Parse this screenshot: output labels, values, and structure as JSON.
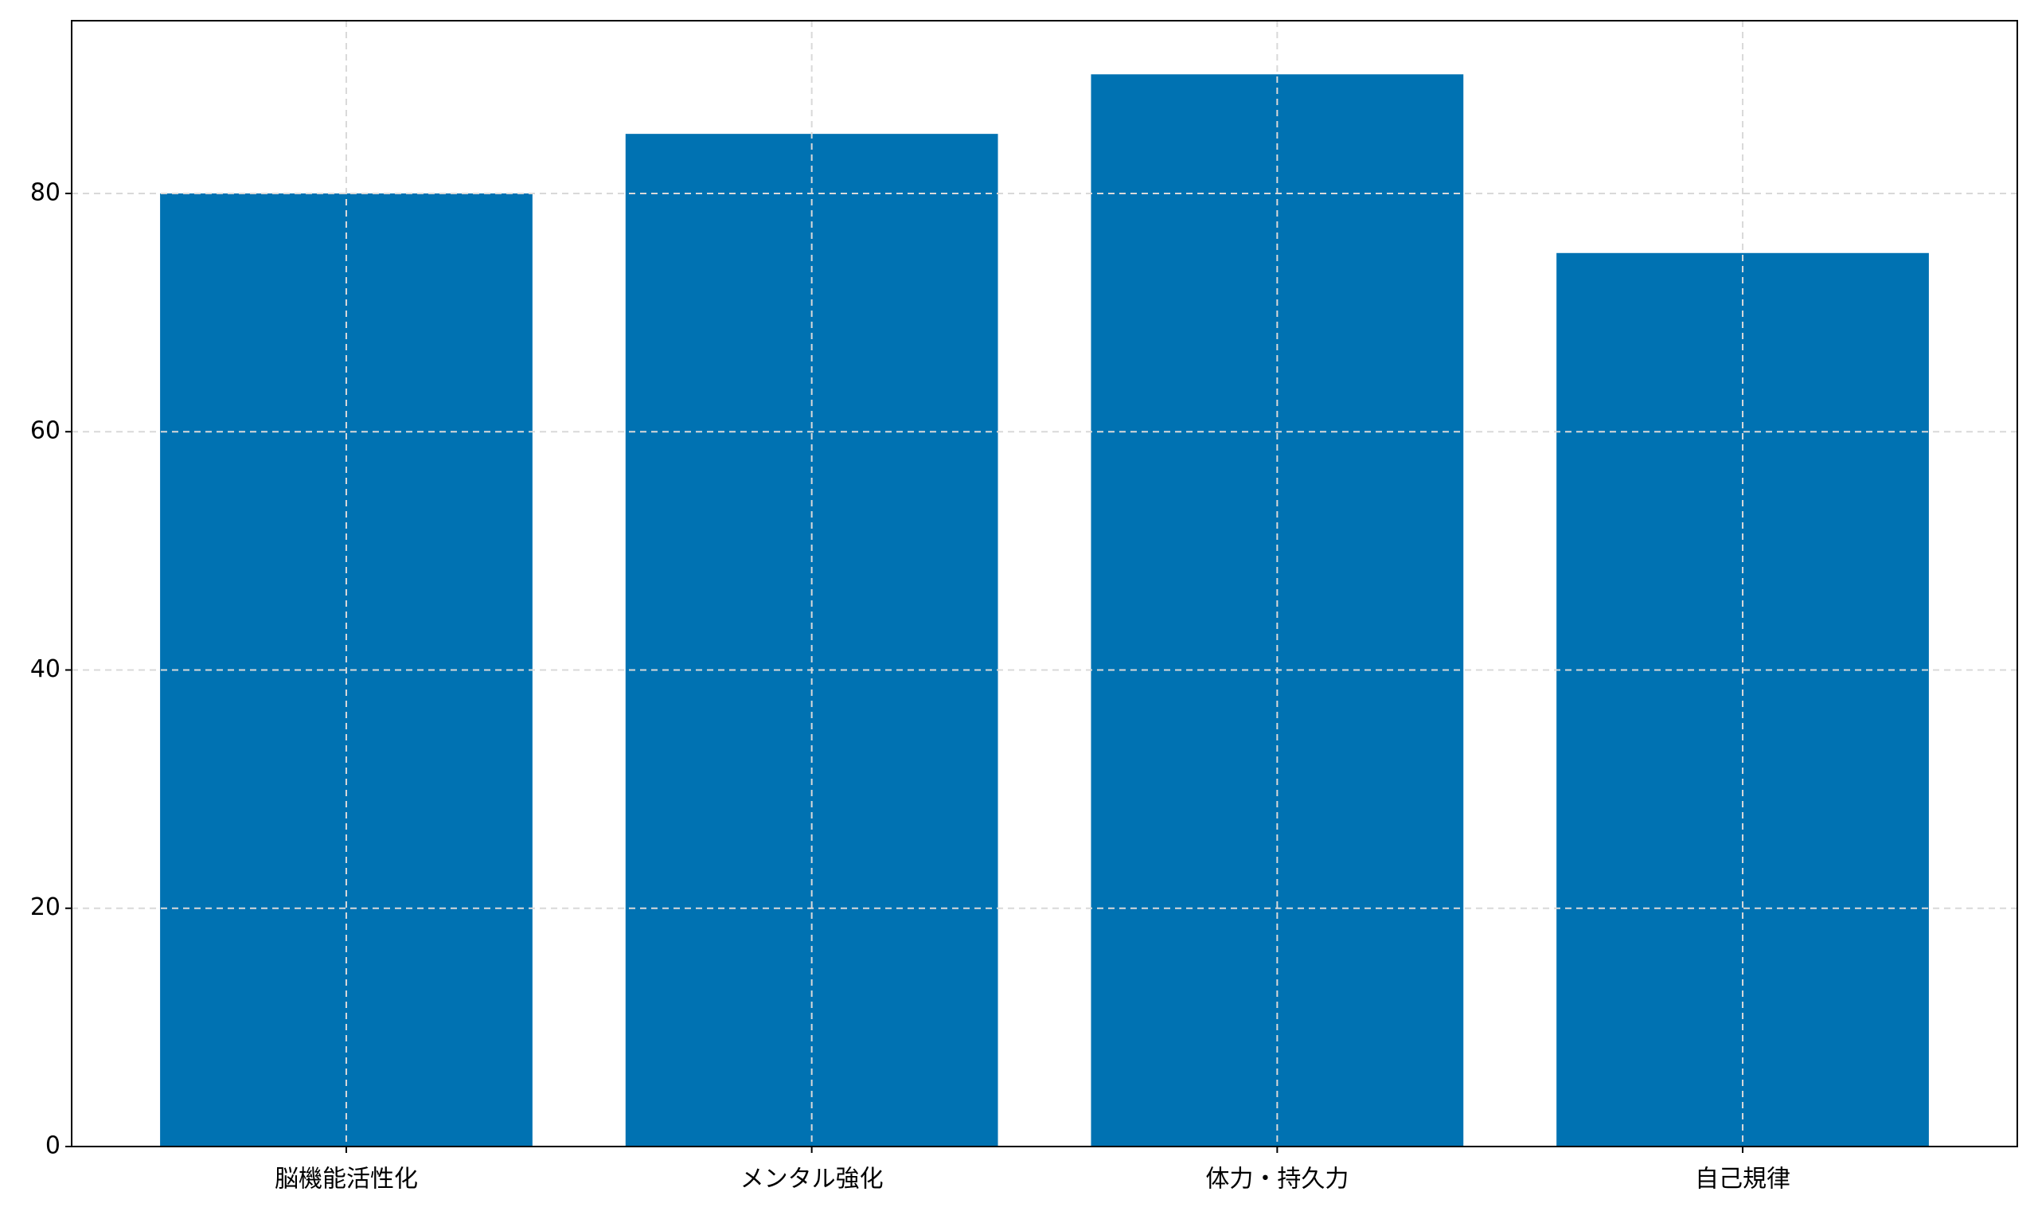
{
  "chart_data": {
    "type": "bar",
    "categories": [
      "脳機能活性化",
      "メンタル強化",
      "体力・持久力",
      "自己規律"
    ],
    "values": [
      80,
      85,
      90,
      75
    ],
    "color": "#0072b2",
    "ylim": [
      0,
      94.5
    ],
    "yticks": [
      0,
      20,
      40,
      60,
      80
    ],
    "grid": true
  }
}
